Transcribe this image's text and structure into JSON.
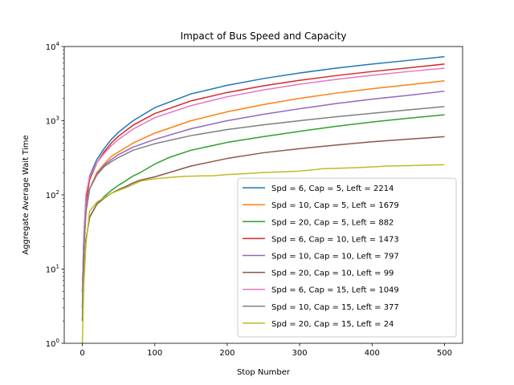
{
  "chart_data": {
    "type": "line",
    "title": "Impact of Bus Speed and Capacity",
    "xlabel": "Stop Number",
    "ylabel": "Aggregate Average Wait Time",
    "xlim": [
      -25,
      525
    ],
    "ylim": [
      1,
      10000
    ],
    "yscale": "log",
    "xticks": [
      0,
      100,
      200,
      300,
      400,
      500
    ],
    "yticks": [
      {
        "value": 1,
        "base": "10",
        "exp": "0"
      },
      {
        "value": 10,
        "base": "10",
        "exp": "1"
      },
      {
        "value": 100,
        "base": "10",
        "exp": "2"
      },
      {
        "value": 1000,
        "base": "10",
        "exp": "3"
      },
      {
        "value": 10000,
        "base": "10",
        "exp": "4"
      }
    ],
    "grid": false,
    "legend_position": "lower right",
    "series": [
      {
        "name": "Spd = 6, Cap = 5, Left = 2214",
        "color": "#1f77b4",
        "x": [
          0,
          2,
          5,
          10,
          20,
          30,
          40,
          50,
          70,
          100,
          150,
          200,
          250,
          300,
          350,
          400,
          450,
          500
        ],
        "y": [
          5,
          25,
          90,
          180,
          300,
          420,
          560,
          700,
          1000,
          1500,
          2300,
          3000,
          3700,
          4400,
          5100,
          5800,
          6500,
          7300
        ]
      },
      {
        "name": "Spd = 10, Cap = 5, Left = 1679",
        "color": "#ff7f0e",
        "x": [
          0,
          2,
          5,
          10,
          20,
          30,
          40,
          50,
          70,
          100,
          150,
          200,
          250,
          300,
          350,
          400,
          450,
          500
        ],
        "y": [
          3,
          18,
          60,
          120,
          200,
          260,
          330,
          380,
          500,
          680,
          1000,
          1320,
          1650,
          2000,
          2350,
          2700,
          3050,
          3450
        ]
      },
      {
        "name": "Spd = 20, Cap = 5, Left = 882",
        "color": "#2ca02c",
        "x": [
          0,
          2,
          5,
          10,
          20,
          30,
          40,
          50,
          60,
          70,
          80,
          100,
          120,
          150,
          200,
          250,
          300,
          350,
          400,
          450,
          500
        ],
        "y": [
          2,
          8,
          25,
          50,
          75,
          95,
          115,
          135,
          155,
          180,
          200,
          260,
          320,
          400,
          510,
          610,
          720,
          840,
          960,
          1080,
          1200
        ]
      },
      {
        "name": "Spd = 6, Cap = 10, Left = 1473",
        "color": "#d62728",
        "x": [
          0,
          2,
          5,
          10,
          20,
          30,
          40,
          50,
          70,
          100,
          150,
          200,
          250,
          300,
          350,
          400,
          450,
          500
        ],
        "y": [
          5,
          25,
          80,
          160,
          270,
          380,
          500,
          620,
          870,
          1250,
          1850,
          2400,
          2950,
          3500,
          4050,
          4600,
          5150,
          5800
        ]
      },
      {
        "name": "Spd = 10, Cap = 10, Left = 797",
        "color": "#9467bd",
        "x": [
          0,
          2,
          5,
          10,
          20,
          30,
          40,
          50,
          70,
          100,
          150,
          200,
          250,
          300,
          350,
          400,
          450,
          500
        ],
        "y": [
          3,
          18,
          60,
          120,
          190,
          250,
          300,
          350,
          440,
          560,
          780,
          1000,
          1220,
          1450,
          1700,
          1950,
          2200,
          2500
        ]
      },
      {
        "name": "Spd = 20, Cap = 10, Left = 99",
        "color": "#8c564b",
        "x": [
          0,
          2,
          5,
          10,
          20,
          30,
          40,
          50,
          60,
          70,
          80,
          100,
          120,
          150,
          200,
          250,
          300,
          350,
          400,
          450,
          500
        ],
        "y": [
          2,
          8,
          25,
          50,
          75,
          90,
          105,
          118,
          130,
          145,
          158,
          175,
          200,
          245,
          310,
          370,
          420,
          470,
          520,
          565,
          610
        ]
      },
      {
        "name": "Spd = 6, Cap = 15, Left = 1049",
        "color": "#e377c2",
        "x": [
          0,
          2,
          5,
          10,
          20,
          30,
          40,
          50,
          70,
          100,
          150,
          200,
          250,
          300,
          350,
          400,
          450,
          500
        ],
        "y": [
          5,
          30,
          100,
          175,
          270,
          360,
          460,
          560,
          770,
          1100,
          1600,
          2100,
          2600,
          3100,
          3600,
          4100,
          4600,
          5100
        ]
      },
      {
        "name": "Spd = 10, Cap = 15, Left = 377",
        "color": "#7f7f7f",
        "x": [
          0,
          2,
          5,
          10,
          20,
          30,
          40,
          50,
          70,
          100,
          150,
          200,
          250,
          300,
          350,
          400,
          450,
          500
        ],
        "y": [
          3,
          18,
          60,
          120,
          185,
          240,
          280,
          320,
          400,
          490,
          630,
          760,
          880,
          1000,
          1130,
          1260,
          1400,
          1550
        ]
      },
      {
        "name": "Spd = 20, Cap = 15, Left = 24",
        "color": "#bcbd22",
        "x": [
          0,
          2,
          5,
          10,
          20,
          30,
          40,
          50,
          60,
          70,
          80,
          100,
          120,
          140,
          160,
          180,
          200,
          220,
          250,
          280,
          300,
          320,
          330,
          350,
          380,
          400,
          420,
          450,
          480,
          500
        ],
        "y": [
          1,
          6,
          22,
          60,
          80,
          92,
          105,
          115,
          125,
          138,
          153,
          165,
          172,
          178,
          180,
          181,
          188,
          192,
          200,
          205,
          210,
          218,
          225,
          228,
          233,
          238,
          245,
          248,
          253,
          255
        ]
      }
    ]
  }
}
